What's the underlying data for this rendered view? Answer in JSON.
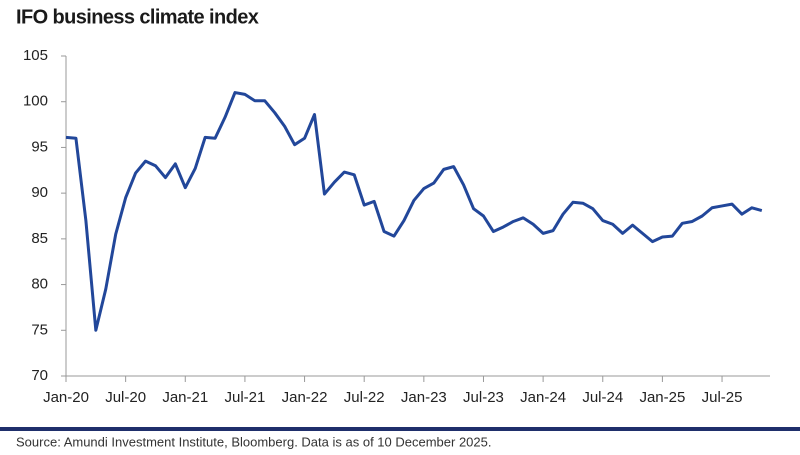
{
  "chart_data": {
    "type": "line",
    "title": "IFO business climate index",
    "source": "Source: Amundi Investment Institute, Bloomberg. Data is as of 10 December 2025.",
    "categories": [
      "Jan-20",
      null,
      null,
      null,
      null,
      null,
      "Jul-20",
      null,
      null,
      null,
      null,
      null,
      "Jan-21",
      null,
      null,
      null,
      null,
      null,
      "Jul-21",
      null,
      null,
      null,
      null,
      null,
      "Jan-22",
      null,
      null,
      null,
      null,
      null,
      "Jul-22",
      null,
      null,
      null,
      null,
      null,
      "Jan-23",
      null,
      null,
      null,
      null,
      null,
      "Jul-23",
      null,
      null,
      null,
      null,
      null,
      "Jan-24",
      null,
      null,
      null,
      null,
      null,
      "Jul-24",
      null,
      null,
      null,
      null,
      null,
      "Jan-25",
      null,
      null,
      null,
      null,
      null,
      "Jul-25",
      null,
      null,
      null,
      null
    ],
    "values": [
      96.1,
      96.0,
      87.0,
      75.0,
      79.5,
      85.5,
      89.5,
      92.2,
      93.5,
      93.0,
      91.7,
      93.2,
      90.6,
      92.7,
      96.1,
      96.0,
      98.3,
      101.0,
      100.8,
      100.1,
      100.1,
      98.8,
      97.3,
      95.3,
      96.0,
      98.6,
      89.9,
      91.2,
      92.3,
      92.0,
      88.7,
      89.1,
      85.8,
      85.3,
      87.0,
      89.2,
      90.5,
      91.1,
      92.6,
      92.9,
      90.9,
      88.3,
      87.5,
      85.8,
      86.3,
      86.9,
      87.3,
      86.6,
      85.6,
      85.9,
      87.7,
      89.0,
      88.9,
      88.3,
      87.0,
      86.6,
      85.6,
      86.5,
      85.6,
      84.7,
      85.2,
      85.3,
      86.7,
      86.9,
      87.5,
      88.4,
      88.6,
      88.8,
      87.7,
      88.4,
      88.1
    ],
    "color": "#22479a",
    "ylim": [
      70,
      105
    ],
    "yticks": [
      70,
      75,
      80,
      85,
      90,
      95,
      100,
      105
    ]
  }
}
